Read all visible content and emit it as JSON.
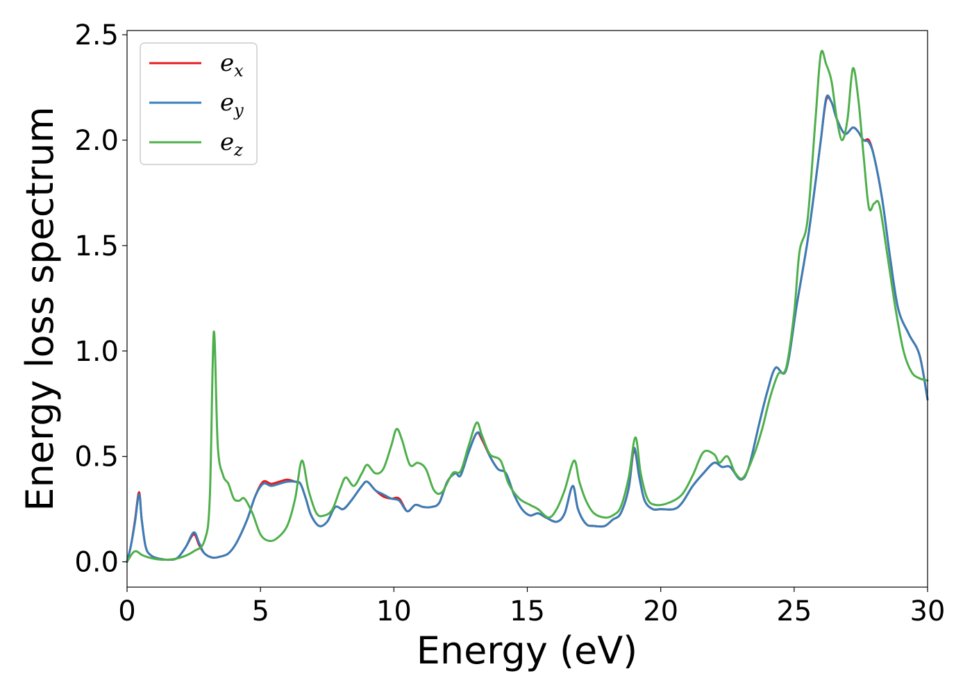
{
  "chart_data": {
    "type": "line",
    "title": "",
    "xlabel": "Energy (eV)",
    "ylabel": "Energy loss spectrum",
    "xlim": [
      0,
      30
    ],
    "ylim": [
      -0.12,
      2.52
    ],
    "xticks": [
      0,
      5,
      10,
      15,
      20,
      25,
      30
    ],
    "xtick_labels": [
      "0",
      "5",
      "10",
      "15",
      "20",
      "25",
      "30"
    ],
    "yticks": [
      0.0,
      0.5,
      1.0,
      1.5,
      2.0,
      2.5
    ],
    "ytick_labels": [
      "0.0",
      "0.5",
      "1.0",
      "1.5",
      "2.0",
      "2.5"
    ],
    "grid": false,
    "legend_position": "top-left",
    "series": [
      {
        "name": "e_x",
        "label_base": "e",
        "label_sub": "x",
        "color": "#e41a1c",
        "points": [
          [
            0,
            0.0
          ],
          [
            0.15,
            0.08
          ],
          [
            0.3,
            0.2
          ],
          [
            0.45,
            0.33
          ],
          [
            0.55,
            0.2
          ],
          [
            0.7,
            0.07
          ],
          [
            0.9,
            0.03
          ],
          [
            1.2,
            0.015
          ],
          [
            1.6,
            0.01
          ],
          [
            1.9,
            0.02
          ],
          [
            2.2,
            0.07
          ],
          [
            2.5,
            0.13
          ],
          [
            2.7,
            0.08
          ],
          [
            2.9,
            0.04
          ],
          [
            3.2,
            0.02
          ],
          [
            3.5,
            0.025
          ],
          [
            3.8,
            0.04
          ],
          [
            4.1,
            0.09
          ],
          [
            4.5,
            0.2
          ],
          [
            4.8,
            0.31
          ],
          [
            5.1,
            0.38
          ],
          [
            5.4,
            0.37
          ],
          [
            5.7,
            0.38
          ],
          [
            6.0,
            0.39
          ],
          [
            6.3,
            0.38
          ],
          [
            6.5,
            0.37
          ],
          [
            6.7,
            0.3
          ],
          [
            6.9,
            0.22
          ],
          [
            7.2,
            0.17
          ],
          [
            7.5,
            0.19
          ],
          [
            7.8,
            0.26
          ],
          [
            8.1,
            0.25
          ],
          [
            8.4,
            0.29
          ],
          [
            8.8,
            0.36
          ],
          [
            9.0,
            0.38
          ],
          [
            9.3,
            0.34
          ],
          [
            9.6,
            0.31
          ],
          [
            9.9,
            0.3
          ],
          [
            10.2,
            0.3
          ],
          [
            10.5,
            0.24
          ],
          [
            10.8,
            0.27
          ],
          [
            11.1,
            0.26
          ],
          [
            11.4,
            0.26
          ],
          [
            11.7,
            0.28
          ],
          [
            12.0,
            0.38
          ],
          [
            12.3,
            0.42
          ],
          [
            12.5,
            0.41
          ],
          [
            12.8,
            0.52
          ],
          [
            13.1,
            0.61
          ],
          [
            13.3,
            0.58
          ],
          [
            13.6,
            0.5
          ],
          [
            13.9,
            0.44
          ],
          [
            14.2,
            0.42
          ],
          [
            14.5,
            0.32
          ],
          [
            14.8,
            0.25
          ],
          [
            15.1,
            0.22
          ],
          [
            15.4,
            0.23
          ],
          [
            15.7,
            0.21
          ],
          [
            16.1,
            0.19
          ],
          [
            16.4,
            0.23
          ],
          [
            16.7,
            0.36
          ],
          [
            16.9,
            0.25
          ],
          [
            17.2,
            0.18
          ],
          [
            17.5,
            0.17
          ],
          [
            17.9,
            0.17
          ],
          [
            18.2,
            0.2
          ],
          [
            18.5,
            0.23
          ],
          [
            18.8,
            0.35
          ],
          [
            19.0,
            0.53
          ],
          [
            19.2,
            0.4
          ],
          [
            19.4,
            0.29
          ],
          [
            19.7,
            0.25
          ],
          [
            20.0,
            0.25
          ],
          [
            20.5,
            0.25
          ],
          [
            20.8,
            0.28
          ],
          [
            21.2,
            0.36
          ],
          [
            21.6,
            0.42
          ],
          [
            22.0,
            0.47
          ],
          [
            22.3,
            0.45
          ],
          [
            22.6,
            0.45
          ],
          [
            23.0,
            0.39
          ],
          [
            23.3,
            0.45
          ],
          [
            23.7,
            0.66
          ],
          [
            24.0,
            0.81
          ],
          [
            24.3,
            0.92
          ],
          [
            24.7,
            0.91
          ],
          [
            25.1,
            1.22
          ],
          [
            25.5,
            1.52
          ],
          [
            25.8,
            1.8
          ],
          [
            26.0,
            2.0
          ],
          [
            26.2,
            2.19
          ],
          [
            26.4,
            2.18
          ],
          [
            26.6,
            2.1
          ],
          [
            26.9,
            2.03
          ],
          [
            27.2,
            2.06
          ],
          [
            27.4,
            2.04
          ],
          [
            27.6,
            2.0
          ],
          [
            27.8,
            2.0
          ],
          [
            28.0,
            1.92
          ],
          [
            28.3,
            1.72
          ],
          [
            28.6,
            1.44
          ],
          [
            28.9,
            1.2
          ],
          [
            29.3,
            1.08
          ],
          [
            29.7,
            0.98
          ],
          [
            30.0,
            0.77
          ]
        ]
      },
      {
        "name": "e_y",
        "label_base": "e",
        "label_sub": "y",
        "color": "#377eb8",
        "points": [
          [
            0,
            0.0
          ],
          [
            0.15,
            0.08
          ],
          [
            0.3,
            0.19
          ],
          [
            0.45,
            0.32
          ],
          [
            0.55,
            0.2
          ],
          [
            0.7,
            0.07
          ],
          [
            0.9,
            0.03
          ],
          [
            1.2,
            0.015
          ],
          [
            1.6,
            0.01
          ],
          [
            1.9,
            0.02
          ],
          [
            2.2,
            0.07
          ],
          [
            2.5,
            0.14
          ],
          [
            2.7,
            0.09
          ],
          [
            2.9,
            0.04
          ],
          [
            3.2,
            0.02
          ],
          [
            3.5,
            0.025
          ],
          [
            3.8,
            0.04
          ],
          [
            4.1,
            0.09
          ],
          [
            4.5,
            0.2
          ],
          [
            4.8,
            0.31
          ],
          [
            5.1,
            0.37
          ],
          [
            5.4,
            0.36
          ],
          [
            5.7,
            0.37
          ],
          [
            6.0,
            0.38
          ],
          [
            6.3,
            0.38
          ],
          [
            6.5,
            0.37
          ],
          [
            6.7,
            0.3
          ],
          [
            6.9,
            0.22
          ],
          [
            7.2,
            0.17
          ],
          [
            7.5,
            0.19
          ],
          [
            7.8,
            0.26
          ],
          [
            8.1,
            0.25
          ],
          [
            8.4,
            0.29
          ],
          [
            8.8,
            0.36
          ],
          [
            9.0,
            0.38
          ],
          [
            9.3,
            0.34
          ],
          [
            9.6,
            0.32
          ],
          [
            9.9,
            0.3
          ],
          [
            10.2,
            0.29
          ],
          [
            10.5,
            0.24
          ],
          [
            10.8,
            0.27
          ],
          [
            11.1,
            0.26
          ],
          [
            11.4,
            0.26
          ],
          [
            11.7,
            0.28
          ],
          [
            12.0,
            0.38
          ],
          [
            12.3,
            0.42
          ],
          [
            12.5,
            0.41
          ],
          [
            12.8,
            0.52
          ],
          [
            13.1,
            0.61
          ],
          [
            13.3,
            0.59
          ],
          [
            13.6,
            0.5
          ],
          [
            13.9,
            0.44
          ],
          [
            14.2,
            0.42
          ],
          [
            14.5,
            0.32
          ],
          [
            14.8,
            0.25
          ],
          [
            15.1,
            0.22
          ],
          [
            15.4,
            0.23
          ],
          [
            15.7,
            0.21
          ],
          [
            16.1,
            0.19
          ],
          [
            16.4,
            0.23
          ],
          [
            16.7,
            0.36
          ],
          [
            16.9,
            0.25
          ],
          [
            17.2,
            0.18
          ],
          [
            17.5,
            0.17
          ],
          [
            17.9,
            0.17
          ],
          [
            18.2,
            0.2
          ],
          [
            18.5,
            0.23
          ],
          [
            18.8,
            0.35
          ],
          [
            19.0,
            0.54
          ],
          [
            19.2,
            0.4
          ],
          [
            19.4,
            0.29
          ],
          [
            19.7,
            0.25
          ],
          [
            20.0,
            0.25
          ],
          [
            20.5,
            0.25
          ],
          [
            20.8,
            0.28
          ],
          [
            21.2,
            0.36
          ],
          [
            21.6,
            0.42
          ],
          [
            22.0,
            0.47
          ],
          [
            22.3,
            0.45
          ],
          [
            22.6,
            0.45
          ],
          [
            23.0,
            0.39
          ],
          [
            23.3,
            0.45
          ],
          [
            23.7,
            0.66
          ],
          [
            24.0,
            0.81
          ],
          [
            24.3,
            0.92
          ],
          [
            24.7,
            0.91
          ],
          [
            25.1,
            1.22
          ],
          [
            25.5,
            1.52
          ],
          [
            25.8,
            1.8
          ],
          [
            26.0,
            2.0
          ],
          [
            26.2,
            2.2
          ],
          [
            26.4,
            2.18
          ],
          [
            26.6,
            2.1
          ],
          [
            26.9,
            2.03
          ],
          [
            27.2,
            2.06
          ],
          [
            27.4,
            2.04
          ],
          [
            27.6,
            2.0
          ],
          [
            27.8,
            1.99
          ],
          [
            28.0,
            1.92
          ],
          [
            28.3,
            1.72
          ],
          [
            28.6,
            1.44
          ],
          [
            28.9,
            1.2
          ],
          [
            29.3,
            1.08
          ],
          [
            29.7,
            0.98
          ],
          [
            30.0,
            0.77
          ]
        ]
      },
      {
        "name": "e_z",
        "label_base": "e",
        "label_sub": "z",
        "color": "#4daf4a",
        "points": [
          [
            0,
            0.0
          ],
          [
            0.2,
            0.04
          ],
          [
            0.35,
            0.05
          ],
          [
            0.6,
            0.03
          ],
          [
            1.0,
            0.015
          ],
          [
            1.5,
            0.01
          ],
          [
            2.0,
            0.02
          ],
          [
            2.5,
            0.05
          ],
          [
            2.9,
            0.1
          ],
          [
            3.1,
            0.3
          ],
          [
            3.25,
            1.09
          ],
          [
            3.4,
            0.55
          ],
          [
            3.6,
            0.41
          ],
          [
            3.8,
            0.37
          ],
          [
            4.0,
            0.3
          ],
          [
            4.2,
            0.29
          ],
          [
            4.4,
            0.3
          ],
          [
            4.7,
            0.23
          ],
          [
            5.0,
            0.13
          ],
          [
            5.3,
            0.1
          ],
          [
            5.6,
            0.11
          ],
          [
            6.0,
            0.17
          ],
          [
            6.3,
            0.3
          ],
          [
            6.55,
            0.48
          ],
          [
            6.8,
            0.34
          ],
          [
            7.1,
            0.23
          ],
          [
            7.4,
            0.22
          ],
          [
            7.7,
            0.25
          ],
          [
            8.0,
            0.35
          ],
          [
            8.2,
            0.4
          ],
          [
            8.5,
            0.36
          ],
          [
            8.8,
            0.42
          ],
          [
            9.0,
            0.46
          ],
          [
            9.3,
            0.42
          ],
          [
            9.6,
            0.44
          ],
          [
            9.9,
            0.55
          ],
          [
            10.1,
            0.63
          ],
          [
            10.3,
            0.58
          ],
          [
            10.6,
            0.46
          ],
          [
            10.9,
            0.47
          ],
          [
            11.2,
            0.44
          ],
          [
            11.5,
            0.34
          ],
          [
            11.8,
            0.33
          ],
          [
            12.2,
            0.42
          ],
          [
            12.5,
            0.43
          ],
          [
            12.8,
            0.55
          ],
          [
            13.1,
            0.66
          ],
          [
            13.3,
            0.6
          ],
          [
            13.6,
            0.51
          ],
          [
            14.0,
            0.48
          ],
          [
            14.3,
            0.37
          ],
          [
            14.7,
            0.3
          ],
          [
            15.1,
            0.27
          ],
          [
            15.4,
            0.25
          ],
          [
            15.8,
            0.21
          ],
          [
            16.1,
            0.25
          ],
          [
            16.4,
            0.34
          ],
          [
            16.75,
            0.48
          ],
          [
            16.95,
            0.38
          ],
          [
            17.2,
            0.29
          ],
          [
            17.5,
            0.23
          ],
          [
            17.9,
            0.21
          ],
          [
            18.2,
            0.22
          ],
          [
            18.5,
            0.26
          ],
          [
            18.8,
            0.4
          ],
          [
            19.05,
            0.59
          ],
          [
            19.25,
            0.42
          ],
          [
            19.5,
            0.3
          ],
          [
            19.8,
            0.27
          ],
          [
            20.3,
            0.28
          ],
          [
            20.8,
            0.32
          ],
          [
            21.2,
            0.41
          ],
          [
            21.6,
            0.52
          ],
          [
            22.0,
            0.51
          ],
          [
            22.2,
            0.47
          ],
          [
            22.5,
            0.5
          ],
          [
            22.8,
            0.42
          ],
          [
            23.1,
            0.4
          ],
          [
            23.5,
            0.51
          ],
          [
            23.8,
            0.63
          ],
          [
            24.1,
            0.78
          ],
          [
            24.4,
            0.89
          ],
          [
            24.7,
            0.92
          ],
          [
            25.0,
            1.18
          ],
          [
            25.2,
            1.47
          ],
          [
            25.5,
            1.62
          ],
          [
            25.8,
            2.1
          ],
          [
            26.0,
            2.41
          ],
          [
            26.2,
            2.36
          ],
          [
            26.4,
            2.28
          ],
          [
            26.6,
            2.1
          ],
          [
            26.8,
            2.0
          ],
          [
            27.0,
            2.1
          ],
          [
            27.2,
            2.34
          ],
          [
            27.4,
            2.2
          ],
          [
            27.6,
            1.93
          ],
          [
            27.8,
            1.68
          ],
          [
            28.0,
            1.7
          ],
          [
            28.2,
            1.69
          ],
          [
            28.5,
            1.45
          ],
          [
            28.8,
            1.2
          ],
          [
            29.1,
            1.0
          ],
          [
            29.4,
            0.9
          ],
          [
            29.7,
            0.87
          ],
          [
            30.0,
            0.86
          ]
        ]
      }
    ]
  }
}
